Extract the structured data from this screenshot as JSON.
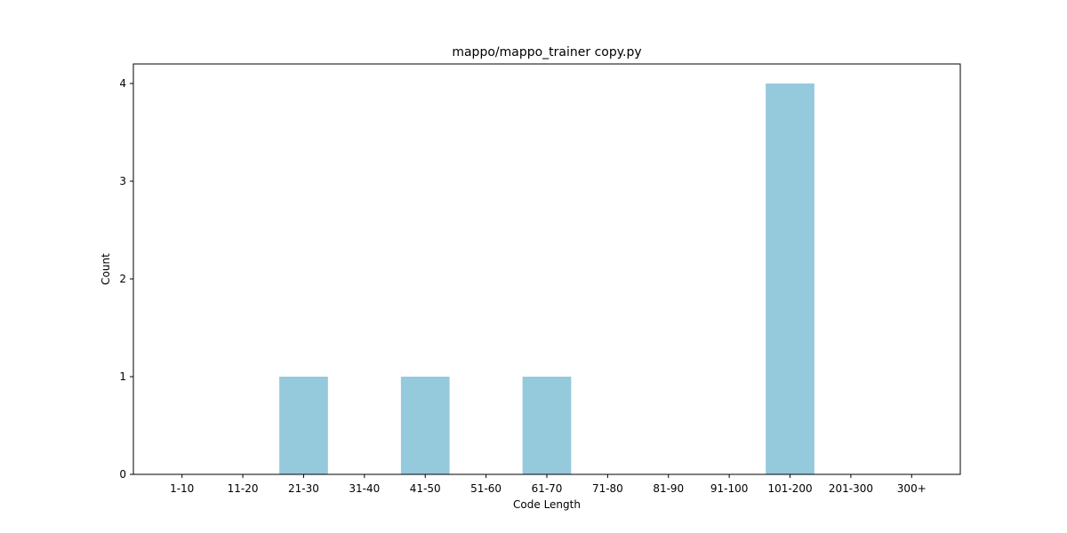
{
  "chart_data": {
    "type": "bar",
    "title": "mappo/mappo_trainer copy.py",
    "xlabel": "Code Length",
    "ylabel": "Count",
    "categories": [
      "1-10",
      "11-20",
      "21-30",
      "31-40",
      "41-50",
      "51-60",
      "61-70",
      "71-80",
      "81-90",
      "91-100",
      "101-200",
      "201-300",
      "300+"
    ],
    "values": [
      0,
      0,
      1,
      0,
      1,
      0,
      1,
      0,
      0,
      0,
      4,
      0,
      0
    ],
    "ylim": [
      0,
      4.2
    ],
    "yticks": [
      0,
      1,
      2,
      3,
      4
    ],
    "bar_color": "#95c9dc",
    "grid": false,
    "legend": "none"
  }
}
